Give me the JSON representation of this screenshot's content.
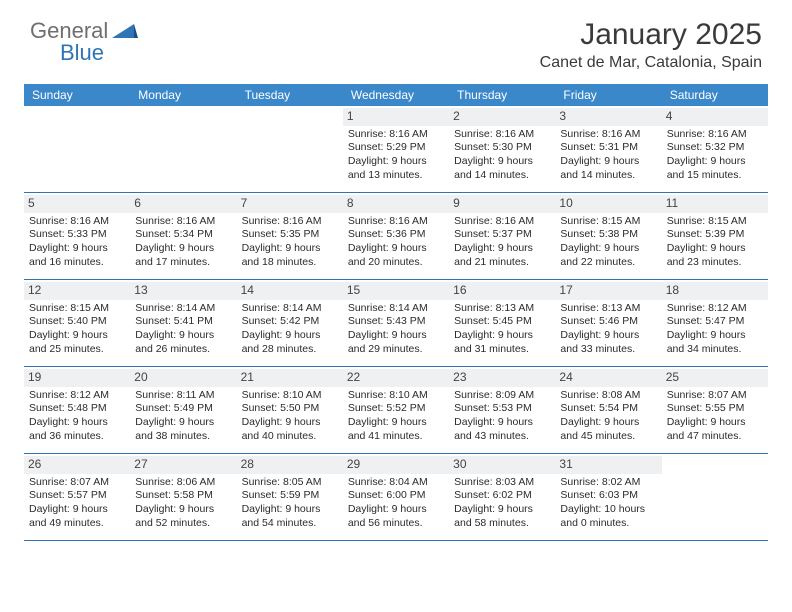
{
  "logo": {
    "part1": "General",
    "part2": "Blue"
  },
  "title": "January 2025",
  "location": "Canet de Mar, Catalonia, Spain",
  "colors": {
    "header_bg": "#3a87c9",
    "header_text": "#ffffff",
    "daynum_bg": "#eef0f2",
    "week_border": "#2f75b5",
    "logo_gray": "#6f6f6f",
    "logo_blue": "#2f75b5",
    "body_text": "#2b2b2b"
  },
  "day_names": [
    "Sunday",
    "Monday",
    "Tuesday",
    "Wednesday",
    "Thursday",
    "Friday",
    "Saturday"
  ],
  "weeks": [
    [
      null,
      null,
      null,
      {
        "n": "1",
        "sr": "8:16 AM",
        "ss": "5:29 PM",
        "dl": "9 hours",
        "dm": "13 minutes."
      },
      {
        "n": "2",
        "sr": "8:16 AM",
        "ss": "5:30 PM",
        "dl": "9 hours",
        "dm": "14 minutes."
      },
      {
        "n": "3",
        "sr": "8:16 AM",
        "ss": "5:31 PM",
        "dl": "9 hours",
        "dm": "14 minutes."
      },
      {
        "n": "4",
        "sr": "8:16 AM",
        "ss": "5:32 PM",
        "dl": "9 hours",
        "dm": "15 minutes."
      }
    ],
    [
      {
        "n": "5",
        "sr": "8:16 AM",
        "ss": "5:33 PM",
        "dl": "9 hours",
        "dm": "16 minutes."
      },
      {
        "n": "6",
        "sr": "8:16 AM",
        "ss": "5:34 PM",
        "dl": "9 hours",
        "dm": "17 minutes."
      },
      {
        "n": "7",
        "sr": "8:16 AM",
        "ss": "5:35 PM",
        "dl": "9 hours",
        "dm": "18 minutes."
      },
      {
        "n": "8",
        "sr": "8:16 AM",
        "ss": "5:36 PM",
        "dl": "9 hours",
        "dm": "20 minutes."
      },
      {
        "n": "9",
        "sr": "8:16 AM",
        "ss": "5:37 PM",
        "dl": "9 hours",
        "dm": "21 minutes."
      },
      {
        "n": "10",
        "sr": "8:15 AM",
        "ss": "5:38 PM",
        "dl": "9 hours",
        "dm": "22 minutes."
      },
      {
        "n": "11",
        "sr": "8:15 AM",
        "ss": "5:39 PM",
        "dl": "9 hours",
        "dm": "23 minutes."
      }
    ],
    [
      {
        "n": "12",
        "sr": "8:15 AM",
        "ss": "5:40 PM",
        "dl": "9 hours",
        "dm": "25 minutes."
      },
      {
        "n": "13",
        "sr": "8:14 AM",
        "ss": "5:41 PM",
        "dl": "9 hours",
        "dm": "26 minutes."
      },
      {
        "n": "14",
        "sr": "8:14 AM",
        "ss": "5:42 PM",
        "dl": "9 hours",
        "dm": "28 minutes."
      },
      {
        "n": "15",
        "sr": "8:14 AM",
        "ss": "5:43 PM",
        "dl": "9 hours",
        "dm": "29 minutes."
      },
      {
        "n": "16",
        "sr": "8:13 AM",
        "ss": "5:45 PM",
        "dl": "9 hours",
        "dm": "31 minutes."
      },
      {
        "n": "17",
        "sr": "8:13 AM",
        "ss": "5:46 PM",
        "dl": "9 hours",
        "dm": "33 minutes."
      },
      {
        "n": "18",
        "sr": "8:12 AM",
        "ss": "5:47 PM",
        "dl": "9 hours",
        "dm": "34 minutes."
      }
    ],
    [
      {
        "n": "19",
        "sr": "8:12 AM",
        "ss": "5:48 PM",
        "dl": "9 hours",
        "dm": "36 minutes."
      },
      {
        "n": "20",
        "sr": "8:11 AM",
        "ss": "5:49 PM",
        "dl": "9 hours",
        "dm": "38 minutes."
      },
      {
        "n": "21",
        "sr": "8:10 AM",
        "ss": "5:50 PM",
        "dl": "9 hours",
        "dm": "40 minutes."
      },
      {
        "n": "22",
        "sr": "8:10 AM",
        "ss": "5:52 PM",
        "dl": "9 hours",
        "dm": "41 minutes."
      },
      {
        "n": "23",
        "sr": "8:09 AM",
        "ss": "5:53 PM",
        "dl": "9 hours",
        "dm": "43 minutes."
      },
      {
        "n": "24",
        "sr": "8:08 AM",
        "ss": "5:54 PM",
        "dl": "9 hours",
        "dm": "45 minutes."
      },
      {
        "n": "25",
        "sr": "8:07 AM",
        "ss": "5:55 PM",
        "dl": "9 hours",
        "dm": "47 minutes."
      }
    ],
    [
      {
        "n": "26",
        "sr": "8:07 AM",
        "ss": "5:57 PM",
        "dl": "9 hours",
        "dm": "49 minutes."
      },
      {
        "n": "27",
        "sr": "8:06 AM",
        "ss": "5:58 PM",
        "dl": "9 hours",
        "dm": "52 minutes."
      },
      {
        "n": "28",
        "sr": "8:05 AM",
        "ss": "5:59 PM",
        "dl": "9 hours",
        "dm": "54 minutes."
      },
      {
        "n": "29",
        "sr": "8:04 AM",
        "ss": "6:00 PM",
        "dl": "9 hours",
        "dm": "56 minutes."
      },
      {
        "n": "30",
        "sr": "8:03 AM",
        "ss": "6:02 PM",
        "dl": "9 hours",
        "dm": "58 minutes."
      },
      {
        "n": "31",
        "sr": "8:02 AM",
        "ss": "6:03 PM",
        "dl": "10 hours",
        "dm": "0 minutes."
      },
      null
    ]
  ],
  "labels": {
    "sunrise": "Sunrise:",
    "sunset": "Sunset:",
    "daylight": "Daylight:",
    "and": "and"
  }
}
